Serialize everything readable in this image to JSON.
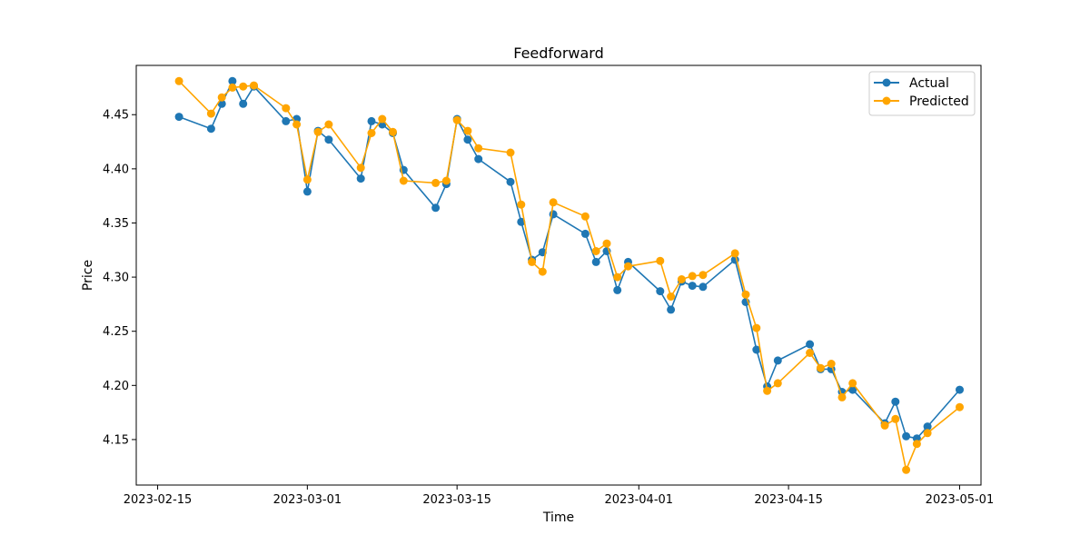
{
  "chart_data": {
    "type": "line",
    "title": "Feedforward",
    "xlabel": "Time",
    "ylabel": "Price",
    "xlim": [
      "2023-02-13",
      "2023-05-03"
    ],
    "ylim": [
      4.108,
      4.4955
    ],
    "x_ticks": [
      "2023-02-15",
      "2023-03-01",
      "2023-03-15",
      "2023-04-01",
      "2023-04-15",
      "2023-05-01"
    ],
    "y_ticks": [
      4.15,
      4.2,
      4.25,
      4.3,
      4.35,
      4.4,
      4.45
    ],
    "y_tick_labels": [
      "4.15",
      "4.20",
      "4.25",
      "4.30",
      "4.35",
      "4.40",
      "4.45"
    ],
    "legend_position": "top-right",
    "colors": {
      "Actual": "#1f77b4",
      "Predicted": "#ffa500"
    },
    "series": [
      {
        "name": "Actual",
        "x": [
          "2023-02-17",
          "2023-02-20",
          "2023-02-21",
          "2023-02-22",
          "2023-02-23",
          "2023-02-24",
          "2023-02-27",
          "2023-02-28",
          "2023-03-01",
          "2023-03-02",
          "2023-03-03",
          "2023-03-06",
          "2023-03-07",
          "2023-03-08",
          "2023-03-09",
          "2023-03-10",
          "2023-03-13",
          "2023-03-14",
          "2023-03-15",
          "2023-03-16",
          "2023-03-17",
          "2023-03-20",
          "2023-03-21",
          "2023-03-22",
          "2023-03-23",
          "2023-03-24",
          "2023-03-27",
          "2023-03-28",
          "2023-03-29",
          "2023-03-30",
          "2023-03-31",
          "2023-04-03",
          "2023-04-04",
          "2023-04-05",
          "2023-04-06",
          "2023-04-07",
          "2023-04-10",
          "2023-04-11",
          "2023-04-12",
          "2023-04-13",
          "2023-04-14",
          "2023-04-17",
          "2023-04-18",
          "2023-04-19",
          "2023-04-20",
          "2023-04-21",
          "2023-04-24",
          "2023-04-25",
          "2023-04-26",
          "2023-04-27",
          "2023-04-28",
          "2023-05-01"
        ],
        "values": [
          4.448,
          4.437,
          4.46,
          4.481,
          4.46,
          4.476,
          4.444,
          4.446,
          4.379,
          4.435,
          4.427,
          4.391,
          4.444,
          4.441,
          4.433,
          4.399,
          4.364,
          4.386,
          4.446,
          4.427,
          4.409,
          4.388,
          4.351,
          4.316,
          4.323,
          4.358,
          4.34,
          4.314,
          4.324,
          4.288,
          4.314,
          4.287,
          4.27,
          4.296,
          4.292,
          4.291,
          4.316,
          4.277,
          4.233,
          4.199,
          4.223,
          4.238,
          4.215,
          4.215,
          4.194,
          4.196,
          4.165,
          4.185,
          4.153,
          4.151,
          4.162,
          4.196
        ]
      },
      {
        "name": "Predicted",
        "x": [
          "2023-02-17",
          "2023-02-20",
          "2023-02-21",
          "2023-02-22",
          "2023-02-23",
          "2023-02-24",
          "2023-02-27",
          "2023-02-28",
          "2023-03-01",
          "2023-03-02",
          "2023-03-03",
          "2023-03-06",
          "2023-03-07",
          "2023-03-08",
          "2023-03-09",
          "2023-03-10",
          "2023-03-13",
          "2023-03-14",
          "2023-03-15",
          "2023-03-16",
          "2023-03-17",
          "2023-03-20",
          "2023-03-21",
          "2023-03-22",
          "2023-03-23",
          "2023-03-24",
          "2023-03-27",
          "2023-03-28",
          "2023-03-29",
          "2023-03-30",
          "2023-03-31",
          "2023-04-03",
          "2023-04-04",
          "2023-04-05",
          "2023-04-06",
          "2023-04-07",
          "2023-04-10",
          "2023-04-11",
          "2023-04-12",
          "2023-04-13",
          "2023-04-14",
          "2023-04-17",
          "2023-04-18",
          "2023-04-19",
          "2023-04-20",
          "2023-04-21",
          "2023-04-24",
          "2023-04-25",
          "2023-04-26",
          "2023-04-27",
          "2023-04-28",
          "2023-05-01"
        ],
        "values": [
          4.481,
          4.451,
          4.466,
          4.475,
          4.476,
          4.477,
          4.456,
          4.441,
          4.39,
          4.434,
          4.441,
          4.401,
          4.433,
          4.446,
          4.434,
          4.389,
          4.387,
          4.389,
          4.445,
          4.435,
          4.419,
          4.415,
          4.367,
          4.314,
          4.305,
          4.369,
          4.356,
          4.324,
          4.331,
          4.3,
          4.31,
          4.315,
          4.282,
          4.298,
          4.301,
          4.302,
          4.322,
          4.284,
          4.253,
          4.195,
          4.202,
          4.23,
          4.216,
          4.22,
          4.189,
          4.202,
          4.163,
          4.169,
          4.122,
          4.146,
          4.156,
          4.18
        ]
      }
    ]
  }
}
